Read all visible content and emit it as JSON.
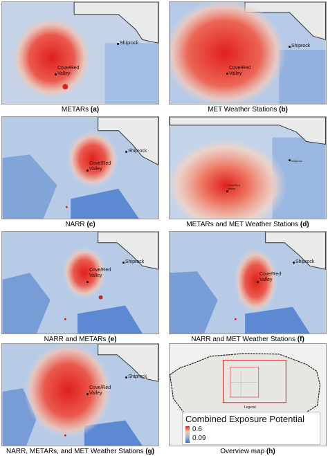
{
  "colors": {
    "high": "#e0201d",
    "mid": "#f2dcc4",
    "low": "#3c74cc",
    "land": "#e9eaea"
  },
  "places": {
    "shiprock": "Shiprock",
    "cove": "Cove/Red Valley"
  },
  "panels": [
    {
      "title": "METARs",
      "tag": "(a)"
    },
    {
      "title": "MET Weather Stations",
      "tag": "(b)"
    },
    {
      "title": "NARR",
      "tag": "(c)"
    },
    {
      "title": "METARs and MET Weather Stations",
      "tag": "(d)"
    },
    {
      "title": "NARR and METARs",
      "tag": "(e)"
    },
    {
      "title": "NARR and MET Weather Stations",
      "tag": "(f)"
    },
    {
      "title": "NARR, METARs, and MET Weather Stations",
      "tag": "(g)"
    },
    {
      "title": "Overview map",
      "tag": "(h)"
    }
  ],
  "overview": {
    "legend_small": "Legend"
  },
  "legend": {
    "title": "Combined Exposure Potential",
    "max": "0.6",
    "min": "0.09"
  }
}
